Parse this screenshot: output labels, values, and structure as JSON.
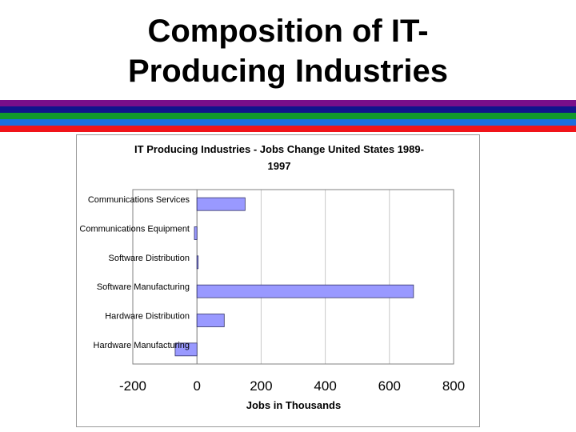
{
  "slide": {
    "title_line1": "Composition of IT-",
    "title_line2": "Producing Industries"
  },
  "colors": {
    "stripes": [
      "#7a0e8a",
      "#11148c",
      "#119a2c",
      "#1a6fe0",
      "#f0141a"
    ],
    "bar_fill": "#9999ff",
    "bar_stroke": "#333366"
  },
  "chart_data": {
    "type": "bar",
    "orientation": "horizontal",
    "title_line1": "IT Producing Industries - Jobs Change United States 1989-",
    "title_line2": "1997",
    "xlabel": "Jobs in Thousands",
    "ylabel": "",
    "xlim": [
      -200,
      800
    ],
    "xticks": [
      "-200",
      "0",
      "200",
      "400",
      "600",
      "800"
    ],
    "grid": "vertical",
    "legend": "none",
    "categories": [
      "Communications Services",
      "Communications Equipment",
      "Software Distribution",
      "Software Manufacturing",
      "Hardware Distribution",
      "Hardware Manufacturing"
    ],
    "values": [
      150,
      -8,
      3,
      675,
      85,
      -68
    ]
  }
}
